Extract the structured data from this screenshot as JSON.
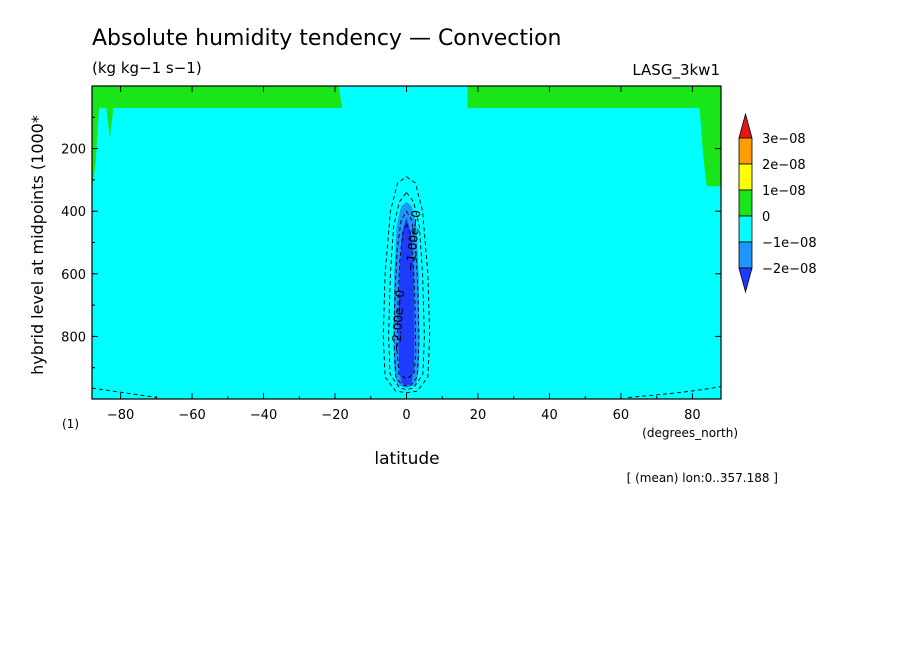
{
  "chart_data": {
    "type": "heatmap",
    "subtype": "filled-contour",
    "title": "Absolute humidity tendency — Convection",
    "units": "(kg kg−1 s−1)",
    "model": "LASG_3kw1",
    "xlabel": "latitude",
    "x_units": "(degrees_north)",
    "ylabel": "hybrid level at midpoints (1000*",
    "y_units": "(1)",
    "mean_note": "[ (mean) lon:0..357.188 ]",
    "xlim": [
      -88,
      88
    ],
    "ylim": [
      0,
      1000
    ],
    "y_inverted": true,
    "x_ticks": [
      -80,
      -60,
      -40,
      -20,
      0,
      20,
      40,
      60,
      80
    ],
    "x_tick_labels": [
      "−80",
      "−60",
      "−40",
      "−20",
      "0",
      "20",
      "40",
      "60",
      "80"
    ],
    "y_ticks": [
      200,
      400,
      600,
      800
    ],
    "y_tick_labels": [
      "200",
      "400",
      "600",
      "800"
    ],
    "colorbar": {
      "labels": [
        "3e−08",
        "2e−08",
        "1e−08",
        "0",
        "−1e−08",
        "−2e−08"
      ],
      "colors": [
        "#e8141c",
        "#ff9c00",
        "#ffff00",
        "#19e619",
        "#00ffff",
        "#1e96ff",
        "#1e3cff"
      ],
      "extend": "both"
    },
    "contour_labels": [
      "−2.00e−0",
      "−1.00e−0"
    ],
    "regions": [
      {
        "name": "0 to 1e−08",
        "color": "#19e619",
        "note": "top layer above ~level 70, missing between ~18S and ~17N; wedges down near poles"
      },
      {
        "name": "−1e−08 to 0",
        "color": "#00ffff",
        "note": "domain background"
      },
      {
        "name": "−2e−08 to −1e−08",
        "color": "#1e96ff",
        "note": "equatorial plume ~ -4 to 4 deg, level ~380-960"
      },
      {
        "name": "below −2e−08",
        "color": "#1e3cff",
        "note": "equatorial core ~ -3 to 3 deg, level ~420-950"
      }
    ]
  }
}
